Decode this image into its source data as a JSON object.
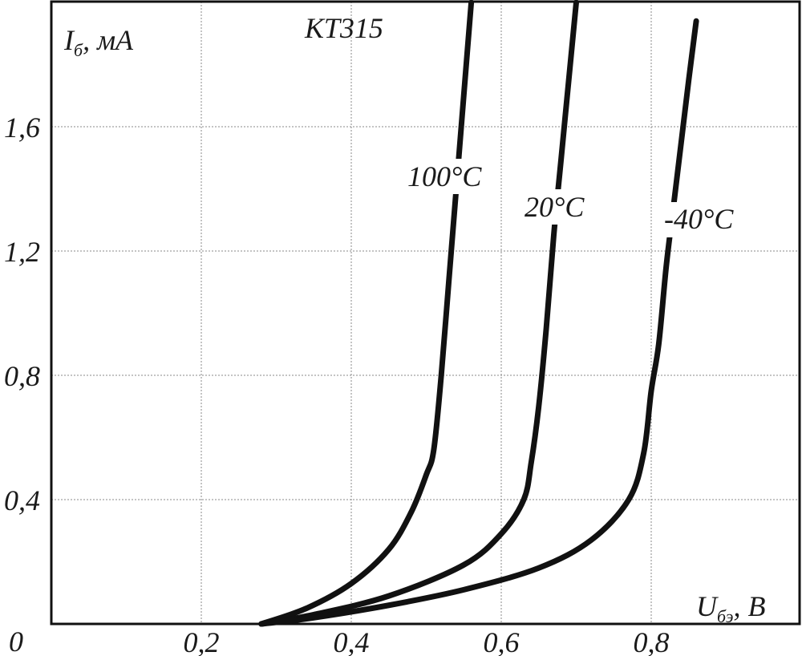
{
  "chart_data": {
    "type": "line",
    "title": "КТ315",
    "ylabel": {
      "main": "I",
      "sub": "б",
      "unit": ", мА"
    },
    "xlabel": {
      "main": "U",
      "sub": "бэ",
      "unit": ", В"
    },
    "xlim": [
      0.0,
      1.0
    ],
    "ylim": [
      0.0,
      2.0
    ],
    "x_ticks": [
      {
        "value": 0.2,
        "label": "0,2"
      },
      {
        "value": 0.4,
        "label": "0,4"
      },
      {
        "value": 0.6,
        "label": "0,6"
      },
      {
        "value": 0.8,
        "label": "0,8"
      }
    ],
    "y_ticks": [
      {
        "value": 0.0,
        "label": "0"
      },
      {
        "value": 0.4,
        "label": "0,4"
      },
      {
        "value": 0.8,
        "label": "0,8"
      },
      {
        "value": 1.2,
        "label": "1,2"
      },
      {
        "value": 1.6,
        "label": "1,6"
      }
    ],
    "grid": true,
    "series": [
      {
        "name": "100°C",
        "label": "100°C",
        "points": [
          [
            0.28,
            0.0
          ],
          [
            0.34,
            0.05
          ],
          [
            0.4,
            0.13
          ],
          [
            0.45,
            0.24
          ],
          [
            0.48,
            0.36
          ],
          [
            0.5,
            0.48
          ],
          [
            0.51,
            0.56
          ],
          [
            0.52,
            0.8
          ],
          [
            0.53,
            1.1
          ],
          [
            0.54,
            1.4
          ],
          [
            0.55,
            1.7
          ],
          [
            0.56,
            2.0
          ]
        ]
      },
      {
        "name": "20°C",
        "label": "20°C",
        "points": [
          [
            0.28,
            0.0
          ],
          [
            0.35,
            0.03
          ],
          [
            0.45,
            0.09
          ],
          [
            0.55,
            0.19
          ],
          [
            0.6,
            0.29
          ],
          [
            0.63,
            0.4
          ],
          [
            0.64,
            0.52
          ],
          [
            0.65,
            0.7
          ],
          [
            0.66,
            0.95
          ],
          [
            0.67,
            1.25
          ],
          [
            0.68,
            1.5
          ],
          [
            0.69,
            1.75
          ],
          [
            0.7,
            2.0
          ]
        ]
      },
      {
        "name": "-40°C",
        "label": "-40°C",
        "points": [
          [
            0.28,
            0.0
          ],
          [
            0.35,
            0.02
          ],
          [
            0.45,
            0.06
          ],
          [
            0.55,
            0.11
          ],
          [
            0.65,
            0.18
          ],
          [
            0.72,
            0.27
          ],
          [
            0.77,
            0.4
          ],
          [
            0.79,
            0.55
          ],
          [
            0.8,
            0.75
          ],
          [
            0.81,
            0.9
          ],
          [
            0.82,
            1.15
          ],
          [
            0.83,
            1.35
          ],
          [
            0.84,
            1.55
          ],
          [
            0.85,
            1.75
          ],
          [
            0.86,
            1.94
          ]
        ]
      }
    ]
  }
}
